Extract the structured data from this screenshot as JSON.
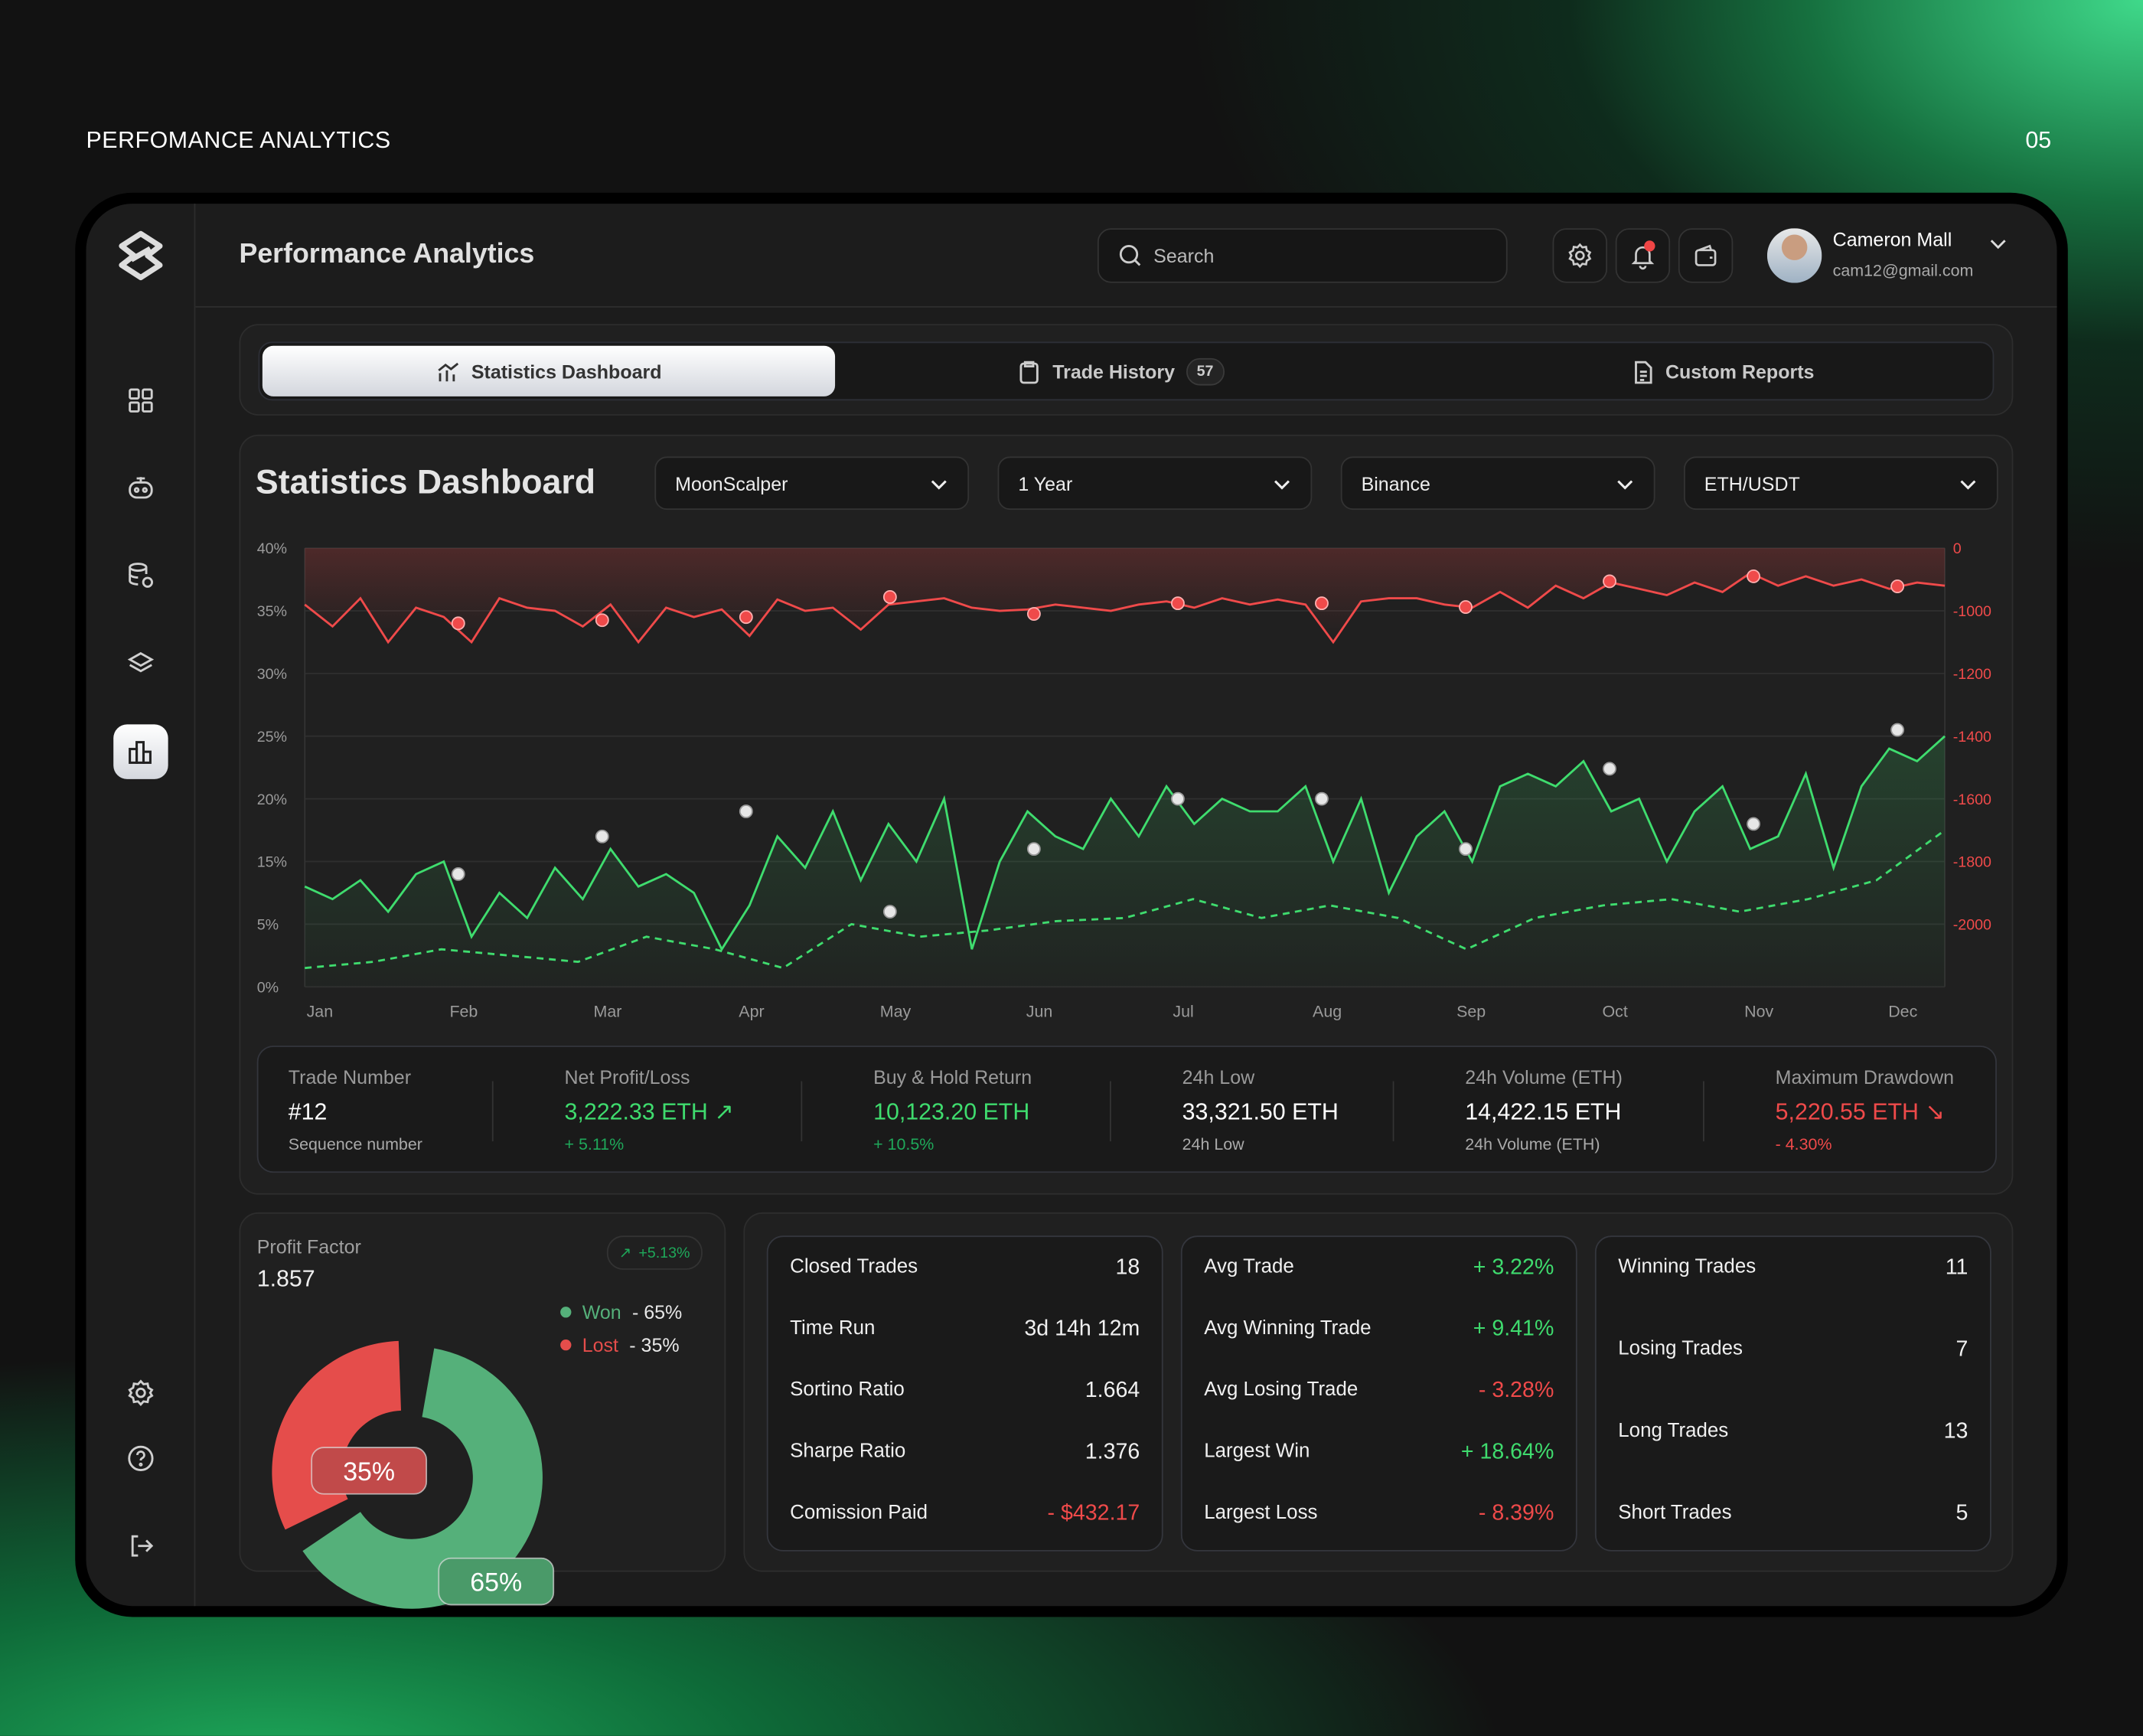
{
  "page": {
    "title": "PERFOMANCE ANALYTICS",
    "number": "05"
  },
  "colors": {
    "green": "#3fdc6e",
    "red": "#ef4a4a",
    "donut_green": "#55b07a",
    "donut_red": "#e54d4b"
  },
  "sidebar": {
    "items": [
      {
        "icon": "grid-icon"
      },
      {
        "icon": "bot-icon"
      },
      {
        "icon": "database-icon"
      },
      {
        "icon": "layers-icon"
      },
      {
        "icon": "bar-chart-icon",
        "active": true
      }
    ],
    "bottom": [
      {
        "icon": "gear-icon"
      },
      {
        "icon": "help-icon"
      },
      {
        "icon": "logout-icon"
      }
    ]
  },
  "header": {
    "title": "Performance Analytics",
    "search_placeholder": "Search",
    "user": {
      "name": "Cameron Mall",
      "email": "cam12@gmail.com"
    },
    "notification_dot": true
  },
  "tabs": [
    {
      "label": "Statistics Dashboard",
      "active": true
    },
    {
      "label": "Trade History",
      "badge": "57"
    },
    {
      "label": "Custom Reports"
    }
  ],
  "dashboard": {
    "title": "Statistics Dashboard",
    "filters": [
      "MoonScalper",
      "1 Year",
      "Binance",
      "ETH/USDT"
    ]
  },
  "chart_data": {
    "type": "line",
    "x_ticks": [
      "Jan",
      "Feb",
      "Mar",
      "Apr",
      "May",
      "Jun",
      "Jul",
      "Aug",
      "Sep",
      "Oct",
      "Nov",
      "Dec"
    ],
    "y_left_ticks": [
      "40%",
      "35%",
      "30%",
      "25%",
      "20%",
      "15%",
      "5%",
      "0%"
    ],
    "y_left_values": [
      40,
      35,
      30,
      25,
      20,
      15,
      5,
      0
    ],
    "y_right_ticks": [
      "0",
      "-1000",
      "-1200",
      "-1400",
      "-1600",
      "-1800",
      "-2000"
    ],
    "y_right_values": [
      0,
      -1000,
      -1200,
      -1400,
      -1600,
      -1800,
      -2000
    ],
    "grid": true,
    "series": [
      {
        "axis": "left",
        "style": "solid",
        "color": "#3fdc6e",
        "values": [
          11,
          9,
          12,
          7,
          13,
          15,
          4,
          10,
          6,
          14,
          9,
          16,
          11,
          13,
          10,
          3,
          8,
          17,
          14,
          19,
          12,
          18,
          15,
          20,
          3,
          15,
          19,
          17,
          16,
          20,
          17,
          21,
          18,
          20,
          19,
          19,
          21,
          15,
          20,
          10,
          17,
          19,
          15,
          21,
          22,
          21,
          23,
          19,
          20,
          15,
          19,
          21,
          16,
          17,
          22,
          14,
          21,
          24,
          23,
          25
        ],
        "markers": [
          {
            "x": "Feb",
            "y": 13
          },
          {
            "x": "Mar",
            "y": 17
          },
          {
            "x": "Apr",
            "y": 19
          },
          {
            "x": "May",
            "y": 7
          },
          {
            "x": "Jun",
            "y": 16
          },
          {
            "x": "Jul",
            "y": 20
          },
          {
            "x": "Aug",
            "y": 20
          },
          {
            "x": "Sep",
            "y": 16
          },
          {
            "x": "Oct",
            "y": 22.4
          },
          {
            "x": "Nov",
            "y": 18
          },
          {
            "x": "Dec",
            "y": 25.5
          }
        ]
      },
      {
        "axis": "left",
        "style": "dashed",
        "color": "#3fdc6e",
        "values": [
          1.5,
          2,
          3,
          2.5,
          2,
          4,
          3,
          1.5,
          5,
          4,
          4.5,
          5.5,
          6,
          9,
          6,
          8,
          6,
          3,
          6,
          8,
          9,
          7,
          9,
          12,
          17.5
        ]
      },
      {
        "axis": "right",
        "style": "solid",
        "color": "#ef4a4a",
        "values": [
          -900,
          -1050,
          -800,
          -1100,
          -950,
          -1020,
          -1100,
          -800,
          -950,
          -1000,
          -1050,
          -900,
          -1100,
          -950,
          -1020,
          -980,
          -1080,
          -820,
          -1000,
          -950,
          -1060,
          -900,
          -850,
          -800,
          -950,
          -1000,
          -980,
          -900,
          -950,
          -1000,
          -900,
          -850,
          -950,
          -800,
          -900,
          -820,
          -900,
          -1100,
          -850,
          -800,
          -800,
          -900,
          -950,
          -700,
          -950,
          -600,
          -800,
          -550,
          -650,
          -750,
          -550,
          -700,
          -400,
          -600,
          -450,
          -600,
          -500,
          -650,
          -550,
          -600
        ],
        "markers": [
          {
            "x": "Feb",
            "y": -1040
          },
          {
            "x": "Mar",
            "y": -1030
          },
          {
            "x": "Apr",
            "y": -1020
          },
          {
            "x": "May",
            "y": -780
          },
          {
            "x": "Jun",
            "y": -1010
          },
          {
            "x": "Jul",
            "y": -880
          },
          {
            "x": "Aug",
            "y": -880
          },
          {
            "x": "Sep",
            "y": -940
          },
          {
            "x": "Oct",
            "y": -530
          },
          {
            "x": "Nov",
            "y": -450
          },
          {
            "x": "Dec",
            "y": -610
          }
        ]
      }
    ]
  },
  "stats": [
    {
      "label": "Trade Number",
      "value": "#12",
      "sub": "Sequence number",
      "tone": "white"
    },
    {
      "label": "Net Profit/Loss",
      "value": "3,222.33 ETH ↗",
      "sub": "+ 5.11%",
      "tone": "green"
    },
    {
      "label": "Buy & Hold Return",
      "value": "10,123.20 ETH",
      "sub": "+ 10.5%",
      "tone": "green"
    },
    {
      "label": "24h Low",
      "value": "33,321.50 ETH",
      "sub": "24h Low",
      "tone": "white"
    },
    {
      "label": "24h Volume (ETH)",
      "value": "14,422.15 ETH",
      "sub": "24h Volume (ETH)",
      "tone": "white"
    },
    {
      "label": "Maximum Drawdown",
      "value": "5,220.55 ETH ↘",
      "sub": "- 4.30%",
      "tone": "red"
    }
  ],
  "profit_factor": {
    "label": "Profit Factor",
    "value": "1.857",
    "change": "+5.13%",
    "won_label": "Won",
    "won_value": "- 65%",
    "lost_label": "Lost",
    "lost_value": "- 35%",
    "won_pct": 65,
    "lost_pct": 35,
    "won_tag": "65%",
    "lost_tag": "35%"
  },
  "cards": [
    [
      {
        "label": "Closed Trades",
        "value": "18"
      },
      {
        "label": "Time Run",
        "value": "3d 14h 12m"
      },
      {
        "label": "Sortino Ratio",
        "value": "1.664"
      },
      {
        "label": "Sharpe Ratio",
        "value": "1.376"
      },
      {
        "label": "Comission Paid",
        "value": "- $432.17",
        "tone": "red"
      }
    ],
    [
      {
        "label": "Avg Trade",
        "value": "+ 3.22%",
        "tone": "green"
      },
      {
        "label": "Avg Winning Trade",
        "value": "+ 9.41%",
        "tone": "green"
      },
      {
        "label": "Avg Losing Trade",
        "value": "- 3.28%",
        "tone": "red"
      },
      {
        "label": "Largest Win",
        "value": "+ 18.64%",
        "tone": "green"
      },
      {
        "label": "Largest Loss",
        "value": "- 8.39%",
        "tone": "red"
      }
    ],
    [
      {
        "label": "Winning Trades",
        "value": "11"
      },
      {
        "label": "Losing Trades",
        "value": "7"
      },
      {
        "label": "Long Trades",
        "value": "13"
      },
      {
        "label": "Short Trades",
        "value": "5"
      }
    ]
  ]
}
